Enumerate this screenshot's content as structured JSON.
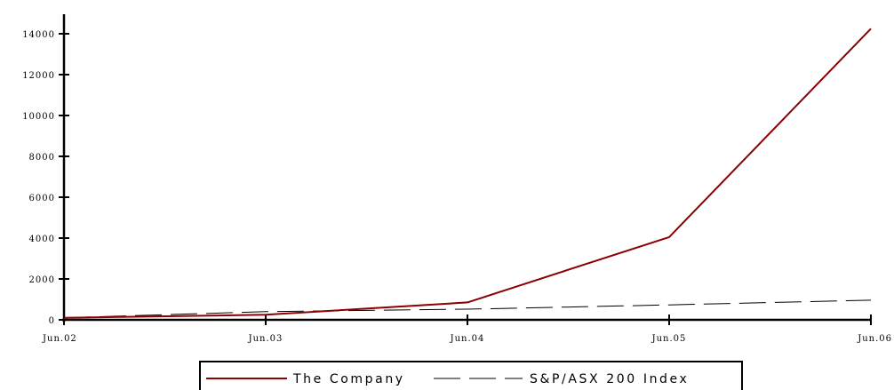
{
  "chart_data": {
    "type": "line",
    "title": "",
    "xlabel": "",
    "ylabel": "",
    "categories": [
      "Jun.02",
      "Jun.03",
      "Jun.04",
      "Jun.05",
      "Jun.06"
    ],
    "ylim": [
      0,
      15000
    ],
    "yticks": [
      0,
      2000,
      4000,
      6000,
      8000,
      10000,
      12000,
      14000
    ],
    "grid": false,
    "legend_position": "bottom",
    "series": [
      {
        "name": "The Company",
        "values": [
          100,
          250,
          850,
          4050,
          14250
        ],
        "color": "#8b0000",
        "style": "solid"
      },
      {
        "name": "S&P/ASX 200 Index",
        "values": [
          100,
          400,
          520,
          730,
          960
        ],
        "color": "#000000",
        "style": "dashed"
      }
    ]
  }
}
